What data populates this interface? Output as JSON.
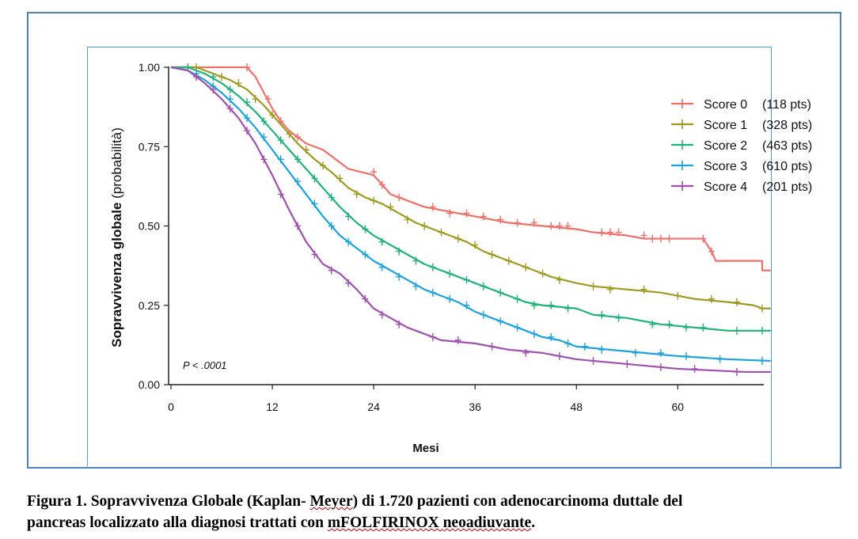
{
  "caption": {
    "line1_prefix": "Figura 1. Sopravvivenza Globale (Kaplan- ",
    "line1_wavy": "Meyer",
    "line1_suffix": ") di 1.720 pazienti con adenocarcinoma duttale del",
    "line2_prefix": "pancreas localizzato alla diagnosi trattati con ",
    "line2_wavy1": "mFOLFIRINOX",
    "line2_space": " ",
    "line2_wavy2": "neoadiuvante",
    "line2_suffix": "."
  },
  "chart_data": {
    "type": "line",
    "subtype": "kaplan-meier",
    "xlabel": "Mesi",
    "ylabel_bold": "Sopravvivenza globale",
    "ylabel_normal": " (probabilità)",
    "xlim": [
      0,
      70
    ],
    "ylim": [
      0,
      1
    ],
    "x_ticks": [
      0,
      12,
      24,
      36,
      48,
      60
    ],
    "x_tick_labels": [
      "0",
      "12",
      "24",
      "36",
      "48",
      "60"
    ],
    "y_ticks": [
      0,
      0.25,
      0.5,
      0.75,
      1
    ],
    "y_tick_labels": [
      "0.00",
      "0.25",
      "0.50",
      "0.75",
      "1.00"
    ],
    "annotation": "P < .0001",
    "legend_position": "top-right",
    "series": [
      {
        "name": "Score 0 (118 pts)",
        "legend_name": "Score 0",
        "legend_pts": "(118 pts)",
        "color": "#f07068",
        "points": [
          [
            0,
            1
          ],
          [
            9,
            1
          ],
          [
            10,
            0.97
          ],
          [
            11,
            0.92
          ],
          [
            12,
            0.87
          ],
          [
            13,
            0.83
          ],
          [
            14,
            0.8
          ],
          [
            15,
            0.78
          ],
          [
            16,
            0.76
          ],
          [
            18,
            0.74
          ],
          [
            20,
            0.7
          ],
          [
            21,
            0.68
          ],
          [
            24,
            0.66
          ],
          [
            25,
            0.63
          ],
          [
            26,
            0.6
          ],
          [
            28,
            0.58
          ],
          [
            30,
            0.56
          ],
          [
            32,
            0.55
          ],
          [
            34,
            0.54
          ],
          [
            36,
            0.53
          ],
          [
            38,
            0.52
          ],
          [
            40,
            0.51
          ],
          [
            44,
            0.5
          ],
          [
            48,
            0.49
          ],
          [
            50,
            0.48
          ],
          [
            54,
            0.47
          ],
          [
            56,
            0.46
          ],
          [
            60,
            0.46
          ],
          [
            63,
            0.46
          ],
          [
            64,
            0.42
          ],
          [
            64.5,
            0.39
          ],
          [
            70,
            0.39
          ],
          [
            70,
            0.36
          ],
          [
            71,
            0.36
          ]
        ],
        "censors": [
          [
            9,
            1
          ],
          [
            11.5,
            0.9
          ],
          [
            13,
            0.83
          ],
          [
            15,
            0.78
          ],
          [
            24,
            0.67
          ],
          [
            25,
            0.63
          ],
          [
            27,
            0.59
          ],
          [
            31,
            0.56
          ],
          [
            33,
            0.54
          ],
          [
            35,
            0.54
          ],
          [
            37,
            0.53
          ],
          [
            39,
            0.52
          ],
          [
            41,
            0.51
          ],
          [
            43,
            0.51
          ],
          [
            45,
            0.5
          ],
          [
            46,
            0.5
          ],
          [
            47,
            0.5
          ],
          [
            51,
            0.48
          ],
          [
            52,
            0.48
          ],
          [
            53,
            0.48
          ],
          [
            56,
            0.47
          ],
          [
            57,
            0.46
          ],
          [
            58,
            0.46
          ],
          [
            59,
            0.46
          ],
          [
            63,
            0.46
          ],
          [
            64,
            0.42
          ]
        ]
      },
      {
        "name": "Score 1 (328 pts)",
        "legend_name": "Score 1",
        "legend_pts": "(328 pts)",
        "color": "#9e9a1e",
        "points": [
          [
            0,
            1
          ],
          [
            3,
            1
          ],
          [
            5,
            0.98
          ],
          [
            7,
            0.96
          ],
          [
            9,
            0.93
          ],
          [
            11,
            0.88
          ],
          [
            13,
            0.82
          ],
          [
            15,
            0.76
          ],
          [
            17,
            0.71
          ],
          [
            19,
            0.67
          ],
          [
            21,
            0.62
          ],
          [
            23,
            0.59
          ],
          [
            25,
            0.57
          ],
          [
            27,
            0.54
          ],
          [
            29,
            0.51
          ],
          [
            31,
            0.49
          ],
          [
            33,
            0.47
          ],
          [
            35,
            0.45
          ],
          [
            37,
            0.42
          ],
          [
            39,
            0.4
          ],
          [
            41,
            0.38
          ],
          [
            43,
            0.36
          ],
          [
            45,
            0.34
          ],
          [
            48,
            0.32
          ],
          [
            50,
            0.31
          ],
          [
            54,
            0.3
          ],
          [
            58,
            0.29
          ],
          [
            62,
            0.27
          ],
          [
            66,
            0.26
          ],
          [
            69,
            0.25
          ],
          [
            70,
            0.24
          ],
          [
            71,
            0.24
          ]
        ],
        "censors": [
          [
            3,
            1
          ],
          [
            6,
            0.97
          ],
          [
            8,
            0.95
          ],
          [
            10,
            0.9
          ],
          [
            12,
            0.85
          ],
          [
            14,
            0.79
          ],
          [
            16,
            0.74
          ],
          [
            18,
            0.69
          ],
          [
            20,
            0.65
          ],
          [
            22,
            0.6
          ],
          [
            24,
            0.58
          ],
          [
            26,
            0.56
          ],
          [
            28,
            0.52
          ],
          [
            30,
            0.5
          ],
          [
            32,
            0.48
          ],
          [
            34,
            0.46
          ],
          [
            36,
            0.44
          ],
          [
            38,
            0.41
          ],
          [
            40,
            0.39
          ],
          [
            42,
            0.37
          ],
          [
            44,
            0.35
          ],
          [
            46,
            0.33
          ],
          [
            50,
            0.31
          ],
          [
            52,
            0.3
          ],
          [
            56,
            0.3
          ],
          [
            60,
            0.28
          ],
          [
            64,
            0.27
          ],
          [
            67,
            0.26
          ],
          [
            70,
            0.24
          ]
        ]
      },
      {
        "name": "Score 2 (463 pts)",
        "legend_name": "Score 2",
        "legend_pts": "(463 pts)",
        "color": "#1fb27a",
        "points": [
          [
            0,
            1
          ],
          [
            2,
            1
          ],
          [
            4,
            0.98
          ],
          [
            6,
            0.95
          ],
          [
            8,
            0.91
          ],
          [
            10,
            0.86
          ],
          [
            12,
            0.8
          ],
          [
            14,
            0.74
          ],
          [
            16,
            0.68
          ],
          [
            18,
            0.62
          ],
          [
            20,
            0.56
          ],
          [
            22,
            0.51
          ],
          [
            24,
            0.47
          ],
          [
            26,
            0.44
          ],
          [
            28,
            0.41
          ],
          [
            30,
            0.38
          ],
          [
            32,
            0.36
          ],
          [
            34,
            0.34
          ],
          [
            36,
            0.32
          ],
          [
            38,
            0.3
          ],
          [
            40,
            0.28
          ],
          [
            42,
            0.26
          ],
          [
            44,
            0.25
          ],
          [
            48,
            0.24
          ],
          [
            50,
            0.22
          ],
          [
            54,
            0.21
          ],
          [
            58,
            0.19
          ],
          [
            62,
            0.18
          ],
          [
            66,
            0.17
          ],
          [
            71,
            0.17
          ]
        ],
        "censors": [
          [
            2,
            1
          ],
          [
            5,
            0.97
          ],
          [
            7,
            0.93
          ],
          [
            9,
            0.89
          ],
          [
            11,
            0.83
          ],
          [
            13,
            0.77
          ],
          [
            15,
            0.71
          ],
          [
            17,
            0.65
          ],
          [
            19,
            0.59
          ],
          [
            21,
            0.53
          ],
          [
            23,
            0.49
          ],
          [
            25,
            0.45
          ],
          [
            27,
            0.42
          ],
          [
            29,
            0.39
          ],
          [
            31,
            0.37
          ],
          [
            33,
            0.35
          ],
          [
            35,
            0.33
          ],
          [
            37,
            0.31
          ],
          [
            39,
            0.29
          ],
          [
            41,
            0.27
          ],
          [
            43,
            0.25
          ],
          [
            45,
            0.25
          ],
          [
            47,
            0.24
          ],
          [
            51,
            0.22
          ],
          [
            53,
            0.21
          ],
          [
            57,
            0.19
          ],
          [
            59,
            0.19
          ],
          [
            61,
            0.18
          ],
          [
            63,
            0.18
          ],
          [
            67,
            0.17
          ],
          [
            70,
            0.17
          ]
        ]
      },
      {
        "name": "Score 3 (610 pts)",
        "legend_name": "Score 3",
        "legend_pts": "(610 pts)",
        "color": "#1aa3e0",
        "points": [
          [
            0,
            1
          ],
          [
            2,
            0.99
          ],
          [
            4,
            0.96
          ],
          [
            6,
            0.92
          ],
          [
            8,
            0.87
          ],
          [
            10,
            0.81
          ],
          [
            12,
            0.74
          ],
          [
            14,
            0.67
          ],
          [
            16,
            0.6
          ],
          [
            18,
            0.53
          ],
          [
            20,
            0.47
          ],
          [
            22,
            0.43
          ],
          [
            24,
            0.39
          ],
          [
            26,
            0.36
          ],
          [
            28,
            0.33
          ],
          [
            30,
            0.3
          ],
          [
            32,
            0.28
          ],
          [
            34,
            0.26
          ],
          [
            36,
            0.23
          ],
          [
            38,
            0.21
          ],
          [
            40,
            0.19
          ],
          [
            42,
            0.17
          ],
          [
            44,
            0.15
          ],
          [
            46,
            0.14
          ],
          [
            48,
            0.12
          ],
          [
            52,
            0.11
          ],
          [
            56,
            0.1
          ],
          [
            60,
            0.09
          ],
          [
            66,
            0.08
          ],
          [
            71,
            0.075
          ]
        ],
        "censors": [
          [
            3,
            0.98
          ],
          [
            5,
            0.94
          ],
          [
            7,
            0.9
          ],
          [
            9,
            0.84
          ],
          [
            11,
            0.78
          ],
          [
            13,
            0.71
          ],
          [
            15,
            0.64
          ],
          [
            17,
            0.57
          ],
          [
            19,
            0.5
          ],
          [
            21,
            0.45
          ],
          [
            23,
            0.41
          ],
          [
            25,
            0.37
          ],
          [
            27,
            0.34
          ],
          [
            29,
            0.31
          ],
          [
            31,
            0.29
          ],
          [
            33,
            0.27
          ],
          [
            35,
            0.25
          ],
          [
            37,
            0.22
          ],
          [
            39,
            0.2
          ],
          [
            41,
            0.18
          ],
          [
            43,
            0.16
          ],
          [
            45,
            0.15
          ],
          [
            47,
            0.13
          ],
          [
            49,
            0.12
          ],
          [
            51,
            0.11
          ],
          [
            55,
            0.1
          ],
          [
            58,
            0.1
          ],
          [
            61,
            0.09
          ],
          [
            65,
            0.08
          ],
          [
            70,
            0.075
          ]
        ]
      },
      {
        "name": "Score 4 (201 pts)",
        "legend_name": "Score 4",
        "legend_pts": "(201 pts)",
        "color": "#a050b0",
        "points": [
          [
            0,
            1
          ],
          [
            2,
            0.99
          ],
          [
            4,
            0.95
          ],
          [
            6,
            0.9
          ],
          [
            8,
            0.84
          ],
          [
            10,
            0.76
          ],
          [
            12,
            0.66
          ],
          [
            14,
            0.55
          ],
          [
            16,
            0.45
          ],
          [
            18,
            0.38
          ],
          [
            20,
            0.35
          ],
          [
            22,
            0.3
          ],
          [
            24,
            0.24
          ],
          [
            26,
            0.21
          ],
          [
            28,
            0.18
          ],
          [
            30,
            0.16
          ],
          [
            32,
            0.14
          ],
          [
            36,
            0.13
          ],
          [
            40,
            0.11
          ],
          [
            44,
            0.1
          ],
          [
            48,
            0.08
          ],
          [
            52,
            0.07
          ],
          [
            56,
            0.06
          ],
          [
            60,
            0.05
          ],
          [
            64,
            0.045
          ],
          [
            68,
            0.04
          ],
          [
            71,
            0.04
          ]
        ],
        "censors": [
          [
            3,
            0.97
          ],
          [
            5,
            0.93
          ],
          [
            7,
            0.87
          ],
          [
            9,
            0.8
          ],
          [
            11,
            0.71
          ],
          [
            13,
            0.6
          ],
          [
            15,
            0.5
          ],
          [
            17,
            0.41
          ],
          [
            19,
            0.36
          ],
          [
            21,
            0.32
          ],
          [
            23,
            0.27
          ],
          [
            25,
            0.22
          ],
          [
            27,
            0.19
          ],
          [
            31,
            0.15
          ],
          [
            34,
            0.14
          ],
          [
            38,
            0.12
          ],
          [
            42,
            0.1
          ],
          [
            46,
            0.09
          ],
          [
            50,
            0.075
          ],
          [
            54,
            0.065
          ],
          [
            58,
            0.055
          ],
          [
            62,
            0.05
          ],
          [
            67,
            0.04
          ]
        ]
      }
    ]
  }
}
